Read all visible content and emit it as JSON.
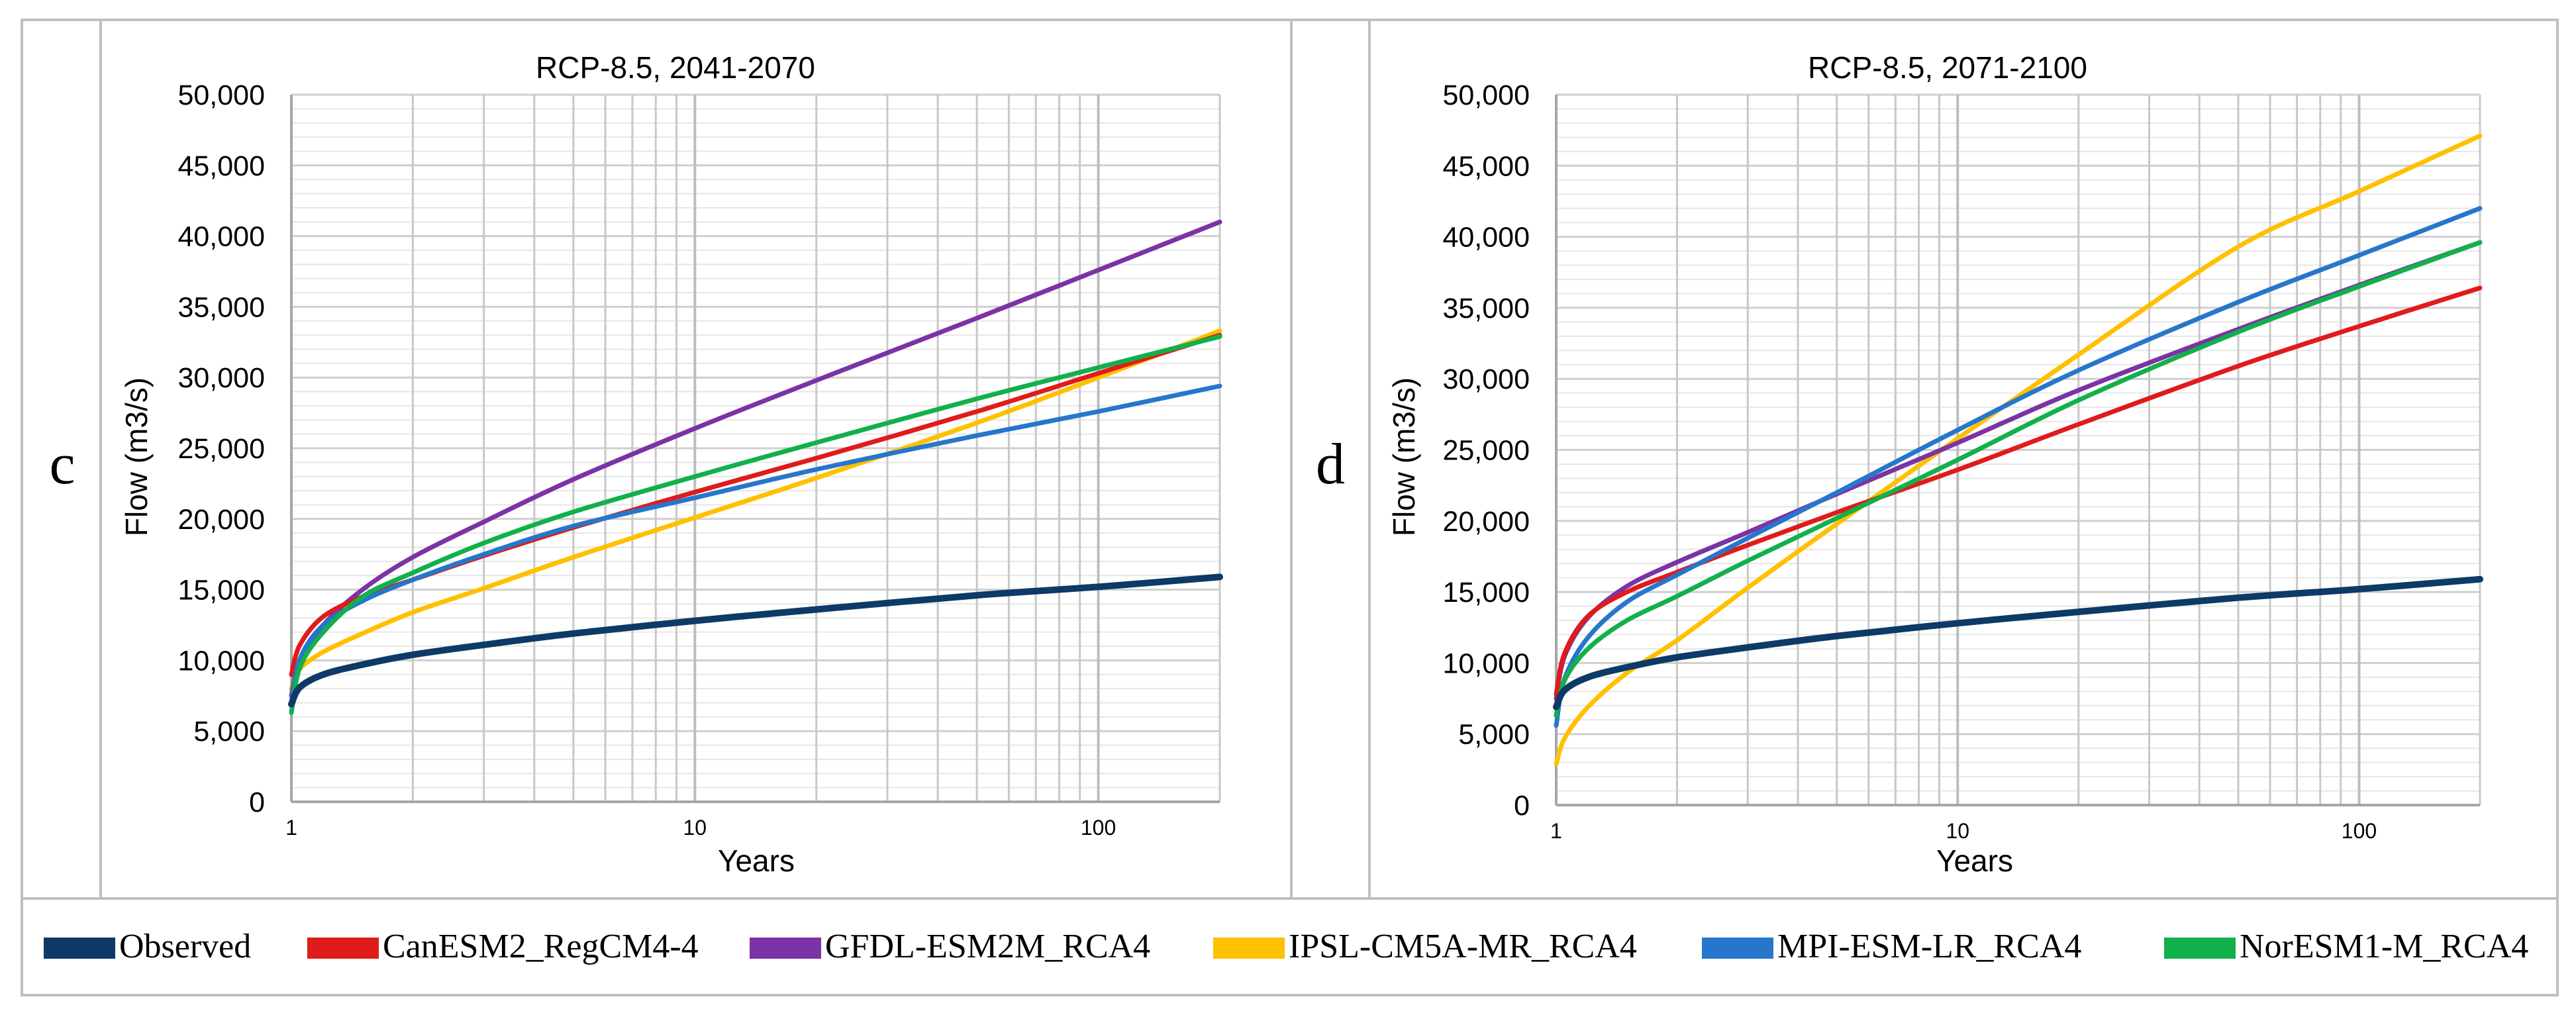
{
  "legend": [
    {
      "name": "Observed",
      "color": "#0d3a66"
    },
    {
      "name": "CanESM2_RegCM4-4",
      "color": "#e01b1b"
    },
    {
      "name": "GFDL-ESM2M_RCA4",
      "color": "#7b33a5"
    },
    {
      "name": "IPSL-CM5A-MR_RCA4",
      "color": "#ffc000"
    },
    {
      "name": "MPI-ESM-LR_RCA4",
      "color": "#2677cc"
    },
    {
      "name": "NorESM1-M_RCA4",
      "color": "#12b04b"
    }
  ],
  "chart_data": [
    {
      "type": "line",
      "panel_label": "c",
      "title": "RCP-8.5, 2041-2070",
      "xlabel": "Years",
      "ylabel": "Flow (m3/s)",
      "xscale": "log",
      "xlim": [
        1,
        200
      ],
      "ylim": [
        0,
        50000
      ],
      "grid": true,
      "x": [
        1,
        1.05,
        1.2,
        1.5,
        2,
        3,
        5,
        10,
        20,
        50,
        100,
        200
      ],
      "xtick_labels": [
        "1",
        "10",
        "100"
      ],
      "ytick_labels": [
        "0",
        "5,000",
        "10,000",
        "15,000",
        "20,000",
        "25,000",
        "30,000",
        "35,000",
        "40,000",
        "45,000",
        "50,000"
      ],
      "series": [
        {
          "name": "Observed",
          "values": [
            6900,
            8100,
            9000,
            9700,
            10400,
            11100,
            11900,
            12800,
            13600,
            14600,
            15200,
            15900
          ]
        },
        {
          "name": "CanESM2_RegCM4-4",
          "values": [
            9000,
            11100,
            13100,
            14500,
            15700,
            17400,
            19400,
            21900,
            24300,
            27600,
            30300,
            33000
          ]
        },
        {
          "name": "GFDL-ESM2M_RCA4",
          "values": [
            7500,
            10000,
            12500,
            15000,
            17300,
            19800,
            22800,
            26400,
            29800,
            34200,
            37600,
            41000
          ]
        },
        {
          "name": "IPSL-CM5A-MR_RCA4",
          "values": [
            8000,
            9400,
            10600,
            11900,
            13400,
            15100,
            17300,
            20100,
            22900,
            26800,
            30000,
            33300
          ]
        },
        {
          "name": "MPI-ESM-LR_RCA4",
          "values": [
            7000,
            10100,
            12500,
            14200,
            15700,
            17500,
            19500,
            21500,
            23500,
            25900,
            27600,
            29400
          ]
        },
        {
          "name": "NorESM1-M_RCA4",
          "values": [
            6300,
            9500,
            12000,
            14500,
            16200,
            18300,
            20500,
            23000,
            25400,
            28500,
            30700,
            32900
          ]
        }
      ]
    },
    {
      "type": "line",
      "panel_label": "d",
      "title": "RCP-8.5, 2071-2100",
      "xlabel": "Years",
      "ylabel": "Flow (m3/s)",
      "xscale": "log",
      "xlim": [
        1,
        200
      ],
      "ylim": [
        0,
        50000
      ],
      "grid": true,
      "x": [
        1,
        1.05,
        1.2,
        1.5,
        2,
        3,
        5,
        10,
        20,
        50,
        100,
        200
      ],
      "xtick_labels": [
        "1",
        "10",
        "100"
      ],
      "ytick_labels": [
        "0",
        "5,000",
        "10,000",
        "15,000",
        "20,000",
        "25,000",
        "30,000",
        "35,000",
        "40,000",
        "45,000",
        "50,000"
      ],
      "series": [
        {
          "name": "Observed",
          "values": [
            6900,
            8100,
            9000,
            9700,
            10400,
            11100,
            11900,
            12800,
            13600,
            14600,
            15200,
            15900
          ]
        },
        {
          "name": "CanESM2_RegCM4-4",
          "values": [
            7800,
            10700,
            13300,
            15000,
            16400,
            18300,
            20600,
            23600,
            26800,
            30900,
            33700,
            36400
          ]
        },
        {
          "name": "GFDL-ESM2M_RCA4",
          "values": [
            7500,
            10500,
            13200,
            15400,
            17100,
            19200,
            21900,
            25500,
            29200,
            33500,
            36600,
            39600
          ]
        },
        {
          "name": "IPSL-CM5A-MR_RCA4",
          "values": [
            2900,
            4700,
            6900,
            9300,
            11600,
            15300,
            19800,
            25800,
            31700,
            39300,
            43200,
            47100
          ]
        },
        {
          "name": "MPI-ESM-LR_RCA4",
          "values": [
            5600,
            8900,
            11800,
            14300,
            16200,
            18800,
            22000,
            26400,
            30600,
            35400,
            38700,
            42000
          ]
        },
        {
          "name": "NorESM1-M_RCA4",
          "values": [
            6300,
            8800,
            11000,
            13000,
            14700,
            17200,
            20200,
            24300,
            28500,
            33300,
            36500,
            39600
          ]
        }
      ]
    }
  ]
}
